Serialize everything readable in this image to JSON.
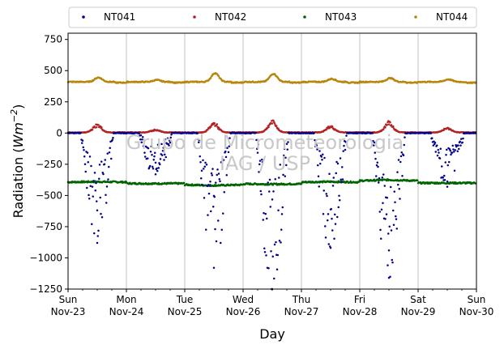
{
  "chart_data": {
    "type": "scatter",
    "xlabel": "Day",
    "ylabel_prefix": "Radiation (",
    "ylabel_unit_base": "Wm",
    "ylabel_unit_exp": "−2",
    "ylabel_suffix": ")",
    "ylim": [
      -1250,
      800
    ],
    "xlim": [
      "2014-11-23",
      "2014-11-30"
    ],
    "yticks": [
      -1250,
      -1000,
      -750,
      -500,
      -250,
      0,
      250,
      500,
      750
    ],
    "ytick_labels": [
      "−1250",
      "−1000",
      "−750",
      "−500",
      "−250",
      "0",
      "250",
      "500",
      "750"
    ],
    "xticks": [
      {
        "day": "Sun",
        "date": "Nov-23"
      },
      {
        "day": "Mon",
        "date": "Nov-24"
      },
      {
        "day": "Tue",
        "date": "Nov-25"
      },
      {
        "day": "Wed",
        "date": "Nov-26"
      },
      {
        "day": "Thu",
        "date": "Nov-27"
      },
      {
        "day": "Fri",
        "date": "Nov-28"
      },
      {
        "day": "Sat",
        "date": "Nov-29"
      },
      {
        "day": "Sun",
        "date": "Nov-30"
      }
    ],
    "grid": "vertical",
    "legend_placement": "top",
    "watermark_line1": "Grupo de Micrometeorologia",
    "watermark_line2": "IAG / USP",
    "series": [
      {
        "name": "NT041",
        "color": "#00008b",
        "daily_min": [
          -880,
          -330,
          -1080,
          -1250,
          -920,
          -1160,
          -430
        ],
        "baseline": 0
      },
      {
        "name": "NT042",
        "color": "#b22222",
        "daily_peak": [
          75,
          30,
          90,
          105,
          60,
          100,
          45
        ],
        "baseline": 5
      },
      {
        "name": "NT043",
        "color": "#006400",
        "daily_level": [
          -390,
          -405,
          -420,
          -410,
          -390,
          -375,
          -400
        ],
        "baseline": -400
      },
      {
        "name": "NT044",
        "color": "#b8860b",
        "daily_peak": [
          445,
          425,
          480,
          475,
          435,
          440,
          430
        ],
        "baseline": 410
      }
    ]
  }
}
